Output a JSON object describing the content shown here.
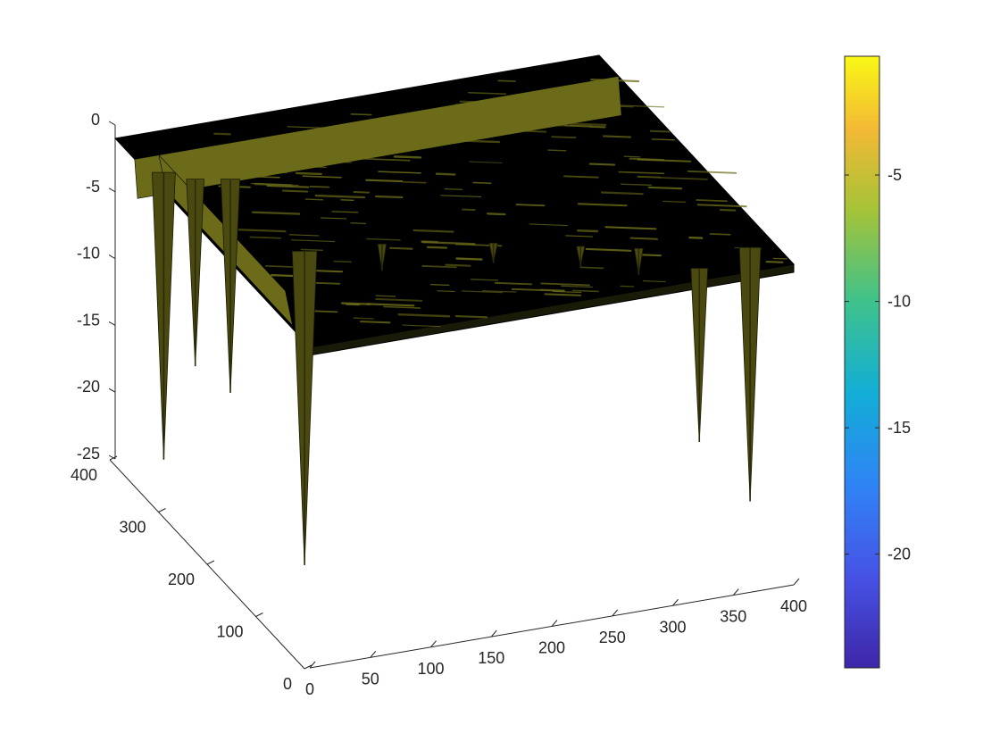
{
  "chart_data": {
    "type": "surface",
    "title": "",
    "xlabel": "",
    "ylabel": "",
    "zlabel": "",
    "x_ticks": [
      0,
      50,
      100,
      150,
      200,
      250,
      300,
      350,
      400
    ],
    "y_ticks": [
      0,
      100,
      200,
      300,
      400
    ],
    "z_ticks": [
      0,
      -5,
      -10,
      -15,
      -20,
      -25
    ],
    "xlim": [
      0,
      400
    ],
    "ylim": [
      0,
      400
    ],
    "zlim": [
      -25,
      0
    ],
    "colormap": "parula",
    "colorbar": {
      "ticks": [
        -5,
        -10,
        -15,
        -20
      ],
      "range": [
        -24.5,
        -0.3
      ],
      "placement": "right"
    },
    "surface": {
      "base_level": -1,
      "edge_color": "#000000",
      "face_highlight_color": "#6b6b1a",
      "step_ridges": [
        {
          "y": 360,
          "x_from": 0,
          "x_to": 400,
          "depth": -6
        },
        {
          "x": 20,
          "y_from": 100,
          "y_to": 360,
          "depth": -6
        }
      ],
      "spikes": [
        {
          "x": 12,
          "y": 330,
          "z": -22.5
        },
        {
          "x": 30,
          "y": 310,
          "z": -15
        },
        {
          "x": 55,
          "y": 300,
          "z": -17
        },
        {
          "x": 60,
          "y": 160,
          "z": -24.5
        },
        {
          "x": 330,
          "y": 20,
          "z": -14
        },
        {
          "x": 380,
          "y": 40,
          "z": -20
        },
        {
          "x": 120,
          "y": 150,
          "z": -3
        },
        {
          "x": 200,
          "y": 120,
          "z": -2.5
        },
        {
          "x": 260,
          "y": 90,
          "z": -2.5
        },
        {
          "x": 300,
          "y": 70,
          "z": -3
        }
      ]
    }
  }
}
